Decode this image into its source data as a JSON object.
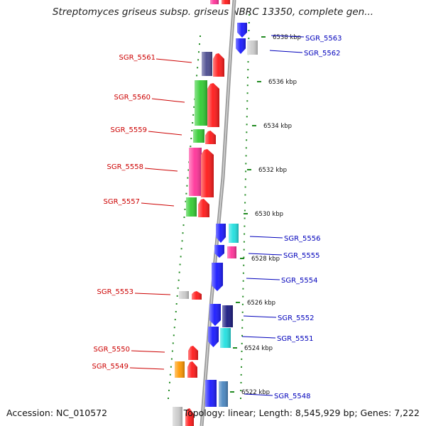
{
  "title": "Streptomyces griseus subsp. griseus NBRC 13350, complete gen...",
  "footer": {
    "accession": "Accession: NC_010572",
    "topology": "Topology: linear; Length: 8,545,929 bp; Genes: 7,222"
  },
  "colors": {
    "left_label": "#cc0000",
    "right_label": "#0000bb",
    "tick_dots": "#228b22",
    "backbone": "#999999"
  },
  "kbp_marks": [
    {
      "label": "6538 kbp",
      "pos_kbp": 6538
    },
    {
      "label": "6536 kbp",
      "pos_kbp": 6536
    },
    {
      "label": "6534 kbp",
      "pos_kbp": 6534
    },
    {
      "label": "6532 kbp",
      "pos_kbp": 6532
    },
    {
      "label": "6530 kbp",
      "pos_kbp": 6530
    },
    {
      "label": "6528 kbp",
      "pos_kbp": 6528
    },
    {
      "label": "6526 kbp",
      "pos_kbp": 6526
    },
    {
      "label": "6524 kbp",
      "pos_kbp": 6524
    },
    {
      "label": "6522 kbp",
      "pos_kbp": 6522
    }
  ],
  "genes_left": [
    {
      "name": "SGR_5561",
      "colors": [
        "#4b4b8f",
        "#ff1a1a"
      ]
    },
    {
      "name": "SGR_5560",
      "colors": [
        "#33cc33",
        "#ff1a1a"
      ]
    },
    {
      "name": "SGR_5559",
      "colors": [
        "#33cc33",
        "#ff1a1a"
      ]
    },
    {
      "name": "SGR_5558",
      "colors": [
        "#ff3399",
        "#ff1a1a"
      ]
    },
    {
      "name": "SGR_5557",
      "colors": [
        "#33cc33",
        "#ff1a1a"
      ]
    },
    {
      "name": "SGR_5553",
      "colors": [
        "#cccccc",
        "#ff1a1a"
      ]
    },
    {
      "name": "SGR_5550",
      "colors": [
        "#ff1a1a"
      ]
    },
    {
      "name": "SGR_5549",
      "colors": [
        "#ff9900",
        "#ff1a1a"
      ]
    }
  ],
  "genes_right": [
    {
      "name": "SGR_5563",
      "colors": [
        "#1a1aff"
      ]
    },
    {
      "name": "SGR_5562",
      "colors": [
        "#1a1aff",
        "#cccccc"
      ]
    },
    {
      "name": "SGR_5556",
      "colors": [
        "#1a1aff",
        "#22e0e0"
      ]
    },
    {
      "name": "SGR_5555",
      "colors": [
        "#1a1aff",
        "#ff3399"
      ]
    },
    {
      "name": "SGR_5554",
      "colors": [
        "#1a1aff"
      ]
    },
    {
      "name": "SGR_5552",
      "colors": [
        "#1a1aff",
        "#1a1a80"
      ]
    },
    {
      "name": "SGR_5551",
      "colors": [
        "#1a1aff",
        "#22e0e0"
      ]
    },
    {
      "name": "SGR_5548",
      "colors": [
        "#1a1aff",
        "#4a86c0"
      ]
    }
  ]
}
